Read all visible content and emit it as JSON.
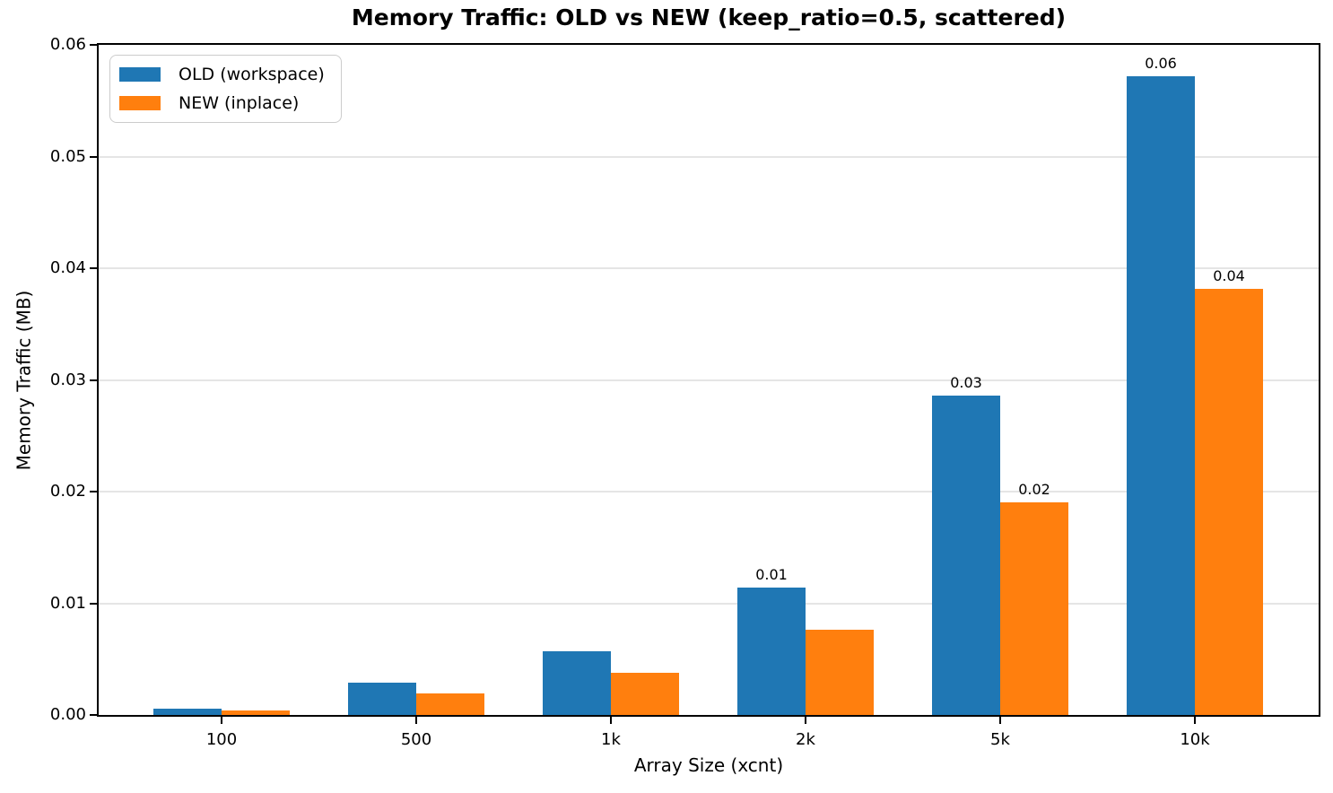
{
  "chart_data": {
    "type": "bar",
    "title": "Memory Traffic: OLD vs NEW (keep_ratio=0.5, scattered)",
    "xlabel": "Array Size (xcnt)",
    "ylabel": "Memory Traffic (MB)",
    "categories": [
      "100",
      "500",
      "1k",
      "2k",
      "5k",
      "10k"
    ],
    "series": [
      {
        "name": "OLD (workspace)",
        "color": "#1f77b4",
        "values": [
          0.000572,
          0.002861,
          0.005722,
          0.011444,
          0.02861,
          0.05722
        ],
        "bar_labels": [
          "",
          "",
          "",
          "0.01",
          "0.03",
          "0.06"
        ]
      },
      {
        "name": "NEW (inplace)",
        "color": "#ff7f0e",
        "values": [
          0.000381,
          0.001907,
          0.003815,
          0.007629,
          0.019073,
          0.038147
        ],
        "bar_labels": [
          "",
          "",
          "",
          "",
          "0.02",
          "0.04"
        ]
      }
    ],
    "ylim": [
      0,
      0.06
    ],
    "yticks": [
      "0.00",
      "0.01",
      "0.02",
      "0.03",
      "0.04",
      "0.05",
      "0.06"
    ],
    "grid": "horizontal",
    "grid_color": "#e5e5e5",
    "axis_color": "#000000",
    "legend_position": "upper-left"
  }
}
